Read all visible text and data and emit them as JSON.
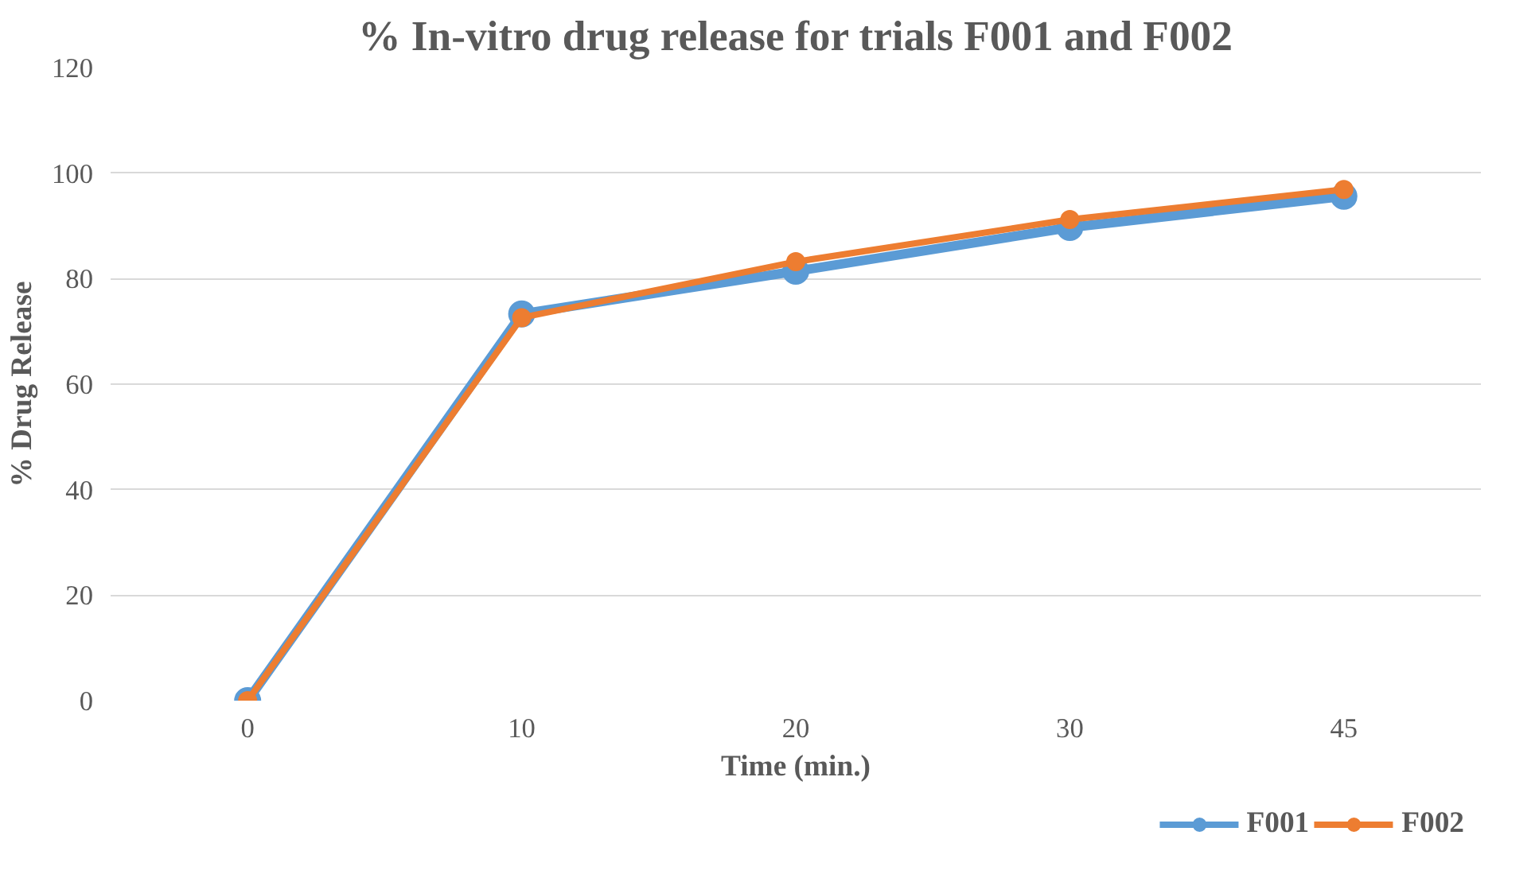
{
  "chart_data": {
    "type": "line",
    "title": "% In-vitro drug release for trials F001 and F002",
    "xlabel": "Time (min.)",
    "ylabel": "% Drug Release",
    "categories": [
      "0",
      "10",
      "20",
      "30",
      "45"
    ],
    "series": [
      {
        "name": "F001",
        "color": "#5b9bd5",
        "values": [
          0,
          73.3,
          81.4,
          89.7,
          95.6
        ]
      },
      {
        "name": "F002",
        "color": "#ed7d31",
        "values": [
          0,
          72.6,
          83.2,
          91.2,
          96.9
        ]
      }
    ],
    "ylim": [
      0,
      120
    ],
    "yticks": [
      0,
      20,
      40,
      60,
      80,
      100,
      120
    ],
    "grid": "y",
    "legend": "bottom right",
    "marker": "circle",
    "line_style": "solid"
  }
}
